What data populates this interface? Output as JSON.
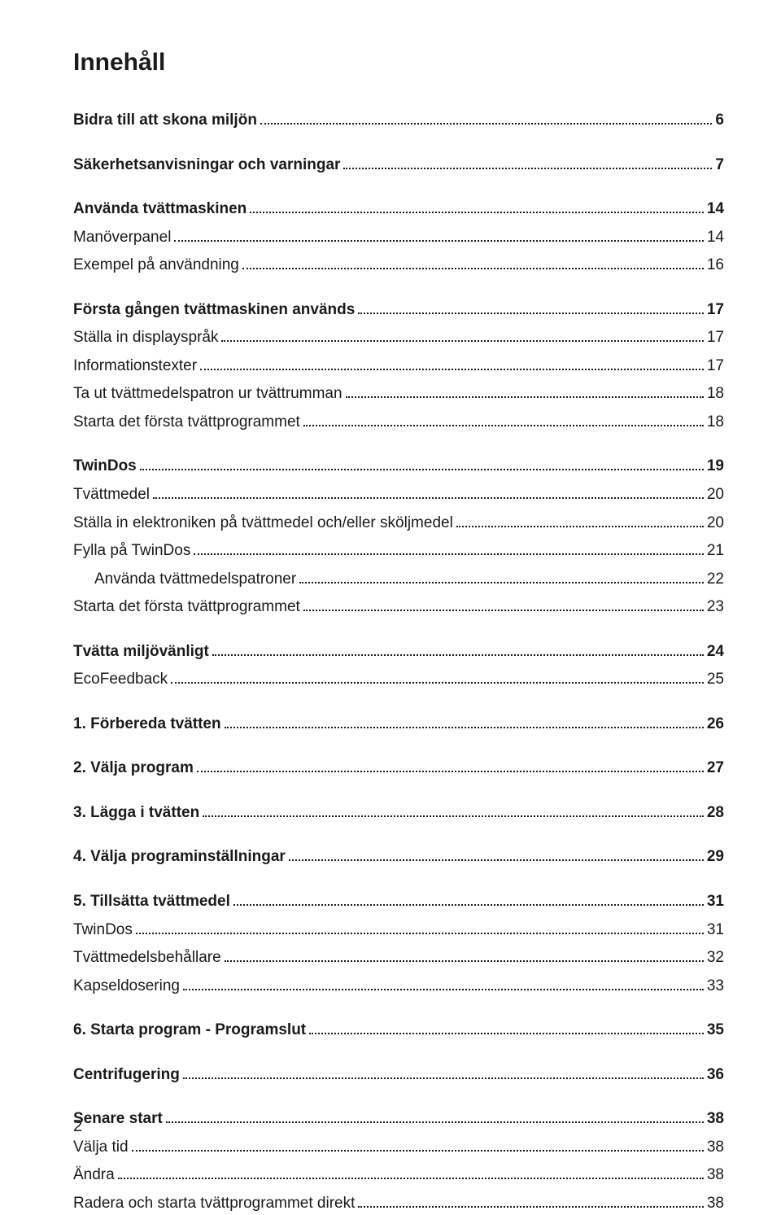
{
  "title": "Innehåll",
  "page_number": "2",
  "entries": [
    {
      "label": "Bidra till att skona miljön",
      "page": "6",
      "bold": true,
      "indent": 0,
      "gap_after": true
    },
    {
      "label": "Säkerhetsanvisningar och varningar",
      "page": "7",
      "bold": true,
      "indent": 0,
      "gap_after": true
    },
    {
      "label": "Använda tvättmaskinen",
      "page": "14",
      "bold": true,
      "indent": 0,
      "gap_after": false
    },
    {
      "label": "Manöverpanel",
      "page": "14",
      "bold": false,
      "indent": 0,
      "gap_after": false
    },
    {
      "label": "Exempel på användning",
      "page": "16",
      "bold": false,
      "indent": 0,
      "gap_after": true
    },
    {
      "label": "Första gången tvättmaskinen används",
      "page": "17",
      "bold": true,
      "indent": 0,
      "gap_after": false
    },
    {
      "label": "Ställa in displayspråk",
      "page": "17",
      "bold": false,
      "indent": 0,
      "gap_after": false
    },
    {
      "label": "Informationstexter",
      "page": "17",
      "bold": false,
      "indent": 0,
      "gap_after": false
    },
    {
      "label": "Ta ut tvättmedelspatron ur tvättrumman",
      "page": "18",
      "bold": false,
      "indent": 0,
      "gap_after": false
    },
    {
      "label": "Starta det första tvättprogrammet",
      "page": "18",
      "bold": false,
      "indent": 0,
      "gap_after": true
    },
    {
      "label": "TwinDos",
      "page": "19",
      "bold": true,
      "indent": 0,
      "gap_after": false
    },
    {
      "label": "Tvättmedel",
      "page": "20",
      "bold": false,
      "indent": 0,
      "gap_after": false
    },
    {
      "label": "Ställa in elektroniken på tvättmedel och/eller sköljmedel",
      "page": "20",
      "bold": false,
      "indent": 0,
      "gap_after": false
    },
    {
      "label": "Fylla på TwinDos",
      "page": "21",
      "bold": false,
      "indent": 0,
      "gap_after": false
    },
    {
      "label": "Använda tvättmedelspatroner",
      "page": "22",
      "bold": false,
      "indent": 1,
      "gap_after": false
    },
    {
      "label": "Starta det första tvättprogrammet",
      "page": "23",
      "bold": false,
      "indent": 0,
      "gap_after": true
    },
    {
      "label": "Tvätta miljövänligt",
      "page": "24",
      "bold": true,
      "indent": 0,
      "gap_after": false
    },
    {
      "label": "EcoFeedback",
      "page": "25",
      "bold": false,
      "indent": 0,
      "gap_after": true
    },
    {
      "label": "1. Förbereda tvätten",
      "page": "26",
      "bold": true,
      "indent": 0,
      "gap_after": true
    },
    {
      "label": "2. Välja program",
      "page": "27",
      "bold": true,
      "indent": 0,
      "gap_after": true
    },
    {
      "label": "3. Lägga i tvätten",
      "page": "28",
      "bold": true,
      "indent": 0,
      "gap_after": true
    },
    {
      "label": "4. Välja programinställningar",
      "page": "29",
      "bold": true,
      "indent": 0,
      "gap_after": true
    },
    {
      "label": "5. Tillsätta tvättmedel",
      "page": "31",
      "bold": true,
      "indent": 0,
      "gap_after": false
    },
    {
      "label": "TwinDos",
      "page": "31",
      "bold": false,
      "indent": 0,
      "gap_after": false
    },
    {
      "label": "Tvättmedelsbehållare",
      "page": "32",
      "bold": false,
      "indent": 0,
      "gap_after": false
    },
    {
      "label": "Kapseldosering",
      "page": "33",
      "bold": false,
      "indent": 0,
      "gap_after": true
    },
    {
      "label": "6. Starta program - Programslut",
      "page": "35",
      "bold": true,
      "indent": 0,
      "gap_after": true
    },
    {
      "label": "Centrifugering",
      "page": "36",
      "bold": true,
      "indent": 0,
      "gap_after": true
    },
    {
      "label": "Senare start",
      "page": "38",
      "bold": true,
      "indent": 0,
      "gap_after": false
    },
    {
      "label": "Välja tid",
      "page": "38",
      "bold": false,
      "indent": 0,
      "gap_after": false
    },
    {
      "label": "Ändra",
      "page": "38",
      "bold": false,
      "indent": 0,
      "gap_after": false
    },
    {
      "label": "Radera och starta tvättprogrammet direkt",
      "page": "38",
      "bold": false,
      "indent": 0,
      "gap_after": false
    }
  ]
}
